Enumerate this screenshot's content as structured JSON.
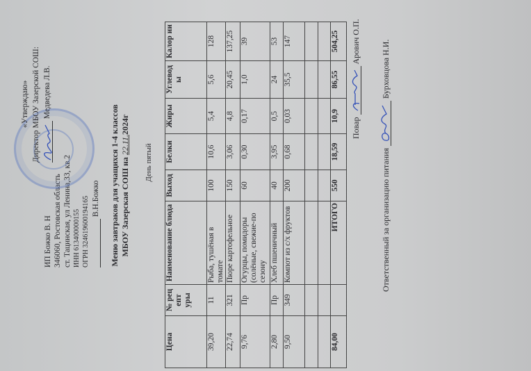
{
  "issuer": {
    "name": "ИП Божко В. Н",
    "address_line1": "346060, Ростовская область",
    "address_line2": "ст. Тацинская, ул Ленина,33, кв.2",
    "inn": "ИНН 613400000155",
    "ogrn": "ОГРН 324619600194165",
    "signature_name": "В.Н.Божко"
  },
  "approval": {
    "label": "«Утверждаю»",
    "position": "Директор МБОУ Зазерской СОШ:",
    "name": "Медведева Л.В."
  },
  "title": {
    "line1": "Меню завтраков для учащихся 1-4 классов",
    "line2_prefix": "МБОУ Зазерская СОШ на",
    "date_handwritten": "22.11.",
    "line2_suffix": "2024г"
  },
  "day_label": "День пятый",
  "table": {
    "headers": [
      "Цена",
      "№ рец епт уры",
      "Наименование блюда",
      "Выход",
      "Белки",
      "Жиры",
      "Углевод ы",
      "Калор ии"
    ],
    "rows": [
      [
        "39,20",
        "11",
        "Рыба, тушёная в томате",
        "100",
        "10,6",
        "5,4",
        "5,6",
        "128"
      ],
      [
        "22,74",
        "321",
        "Пюре картофельное",
        "150",
        "3,06",
        "4,8",
        "20,45",
        "137,25"
      ],
      [
        "9,76",
        "Пр",
        "Огурцы, помидоры (солёные, свежие-по сезону",
        "60",
        "0,30",
        "0,17",
        "1,0",
        "39"
      ],
      [
        "2,80",
        "Пр",
        "Хлеб пшеничный",
        "40",
        "3,95",
        "0,5",
        "24",
        "53"
      ],
      [
        "9,50",
        "349",
        "Компот из с/х фруктов",
        "200",
        "0,68",
        "0,03",
        "35,5",
        "147"
      ],
      [
        "",
        "",
        "",
        "",
        "",
        "",
        "",
        ""
      ],
      [
        "",
        "",
        "",
        "",
        "",
        "",
        "",
        ""
      ]
    ],
    "total": [
      "84,00",
      "",
      "ИТОГО",
      "550",
      "18,59",
      "10,9",
      "86,55",
      "504,25"
    ]
  },
  "footer": {
    "cook_label": "Повар",
    "cook_name": "Арович О.П.",
    "responsible_label": "Ответственный за организацию питания",
    "responsible_name": "Бурховцова Н.И."
  },
  "colors": {
    "ink_blue": "#3552b8",
    "stamp_blue": "#5a78be",
    "paper": "#cbcccd"
  }
}
